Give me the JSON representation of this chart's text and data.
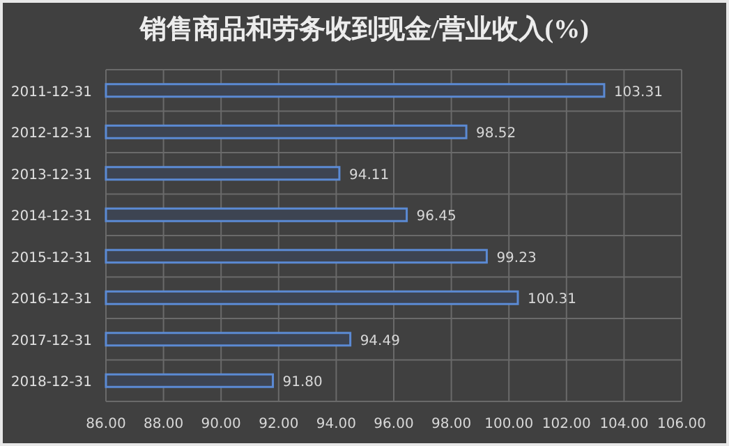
{
  "chart_data": {
    "type": "bar",
    "orientation": "horizontal",
    "title": "销售商品和劳务收到现金/营业收入(%)",
    "categories": [
      "2011-12-31",
      "2012-12-31",
      "2013-12-31",
      "2014-12-31",
      "2015-12-31",
      "2016-12-31",
      "2017-12-31",
      "2018-12-31"
    ],
    "series": [
      {
        "color": "#5b8ad4",
        "values": [
          103.31,
          98.52,
          94.11,
          96.45,
          99.23,
          100.31,
          94.49,
          91.8
        ],
        "value_labels": [
          "103.31",
          "98.52",
          "94.11",
          "96.45",
          "99.23",
          "100.31",
          "94.49",
          "91.80"
        ]
      }
    ],
    "xlim": [
      86,
      106
    ],
    "xticks": [
      {
        "value": 86,
        "label": "86.00"
      },
      {
        "value": 88,
        "label": "88.00"
      },
      {
        "value": 90,
        "label": "90.00"
      },
      {
        "value": 92,
        "label": "92.00"
      },
      {
        "value": 94,
        "label": "94.00"
      },
      {
        "value": 96,
        "label": "96.00"
      },
      {
        "value": 98,
        "label": "98.00"
      },
      {
        "value": 100,
        "label": "100.00"
      },
      {
        "value": 102,
        "label": "102.00"
      },
      {
        "value": 104,
        "label": "104.00"
      },
      {
        "value": 106,
        "label": "106.00"
      }
    ],
    "grid": true
  }
}
